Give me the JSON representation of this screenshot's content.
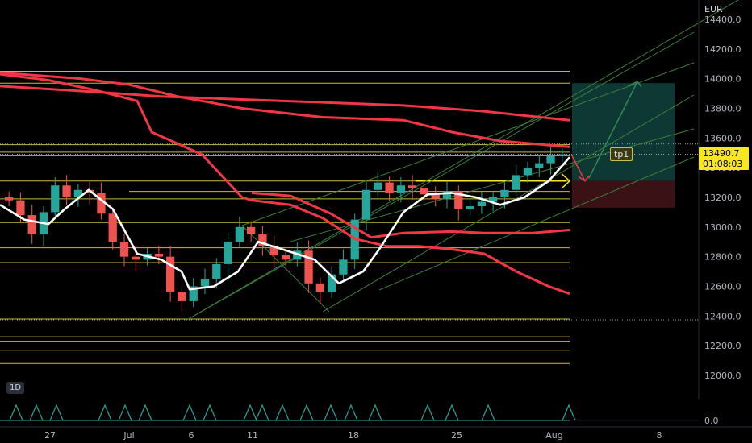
{
  "chart_data": {
    "type": "line",
    "title": "",
    "currency": "EUR",
    "interval": "1D",
    "price_axis": {
      "ticks": [
        "14400.0",
        "14200.0",
        "14000.0",
        "13800.0",
        "13600.0",
        "13400.0",
        "13200.0",
        "13000.0",
        "12800.0",
        "12600.0",
        "12400.0",
        "12200.0",
        "12000.0"
      ],
      "range": [
        11880,
        14480
      ]
    },
    "volume_axis": {
      "ticks": [
        "0.0"
      ]
    },
    "date_axis": {
      "ticks": [
        "27",
        "Jul",
        "6",
        "11",
        "18",
        "25",
        "Aug",
        "8"
      ]
    },
    "last_price": "13490.7",
    "countdown": "01:08:03",
    "last_price_value": 13490.7,
    "annotation_label": "tp1",
    "horizontal_levels": [
      14050,
      13970,
      13555,
      13505,
      13480,
      13310,
      13190,
      13030,
      12860,
      12760,
      12730,
      12380,
      12260,
      12230,
      12170,
      12080
    ],
    "target_zone": {
      "top": 13970,
      "entry": 13310,
      "stop": 13130
    },
    "series": [
      {
        "name": "",
        "color": "#f23645",
        "points": [
          [
            0,
            13950
          ],
          [
            60,
            13930
          ],
          [
            120,
            13910
          ],
          [
            200,
            13880
          ],
          [
            300,
            13860
          ],
          [
            400,
            13840
          ],
          [
            500,
            13820
          ],
          [
            600,
            13780
          ],
          [
            706,
            13720
          ]
        ]
      },
      {
        "name": "",
        "color": "#f23645",
        "points": [
          [
            0,
            14030
          ],
          [
            60,
            13990
          ],
          [
            120,
            13920
          ],
          [
            170,
            13850
          ],
          [
            188,
            13640
          ],
          [
            250,
            13490
          ],
          [
            300,
            13200
          ],
          [
            312,
            13180
          ],
          [
            360,
            13150
          ],
          [
            400,
            13060
          ],
          [
            440,
            12920
          ],
          [
            480,
            12870
          ],
          [
            520,
            12870
          ],
          [
            560,
            12850
          ],
          [
            600,
            12820
          ],
          [
            640,
            12700
          ],
          [
            680,
            12600
          ],
          [
            706,
            12550
          ]
        ]
      },
      {
        "name": "",
        "color": "#f23645",
        "points": [
          [
            0,
            14040
          ],
          [
            100,
            14000
          ],
          [
            160,
            13960
          ],
          [
            220,
            13880
          ],
          [
            300,
            13800
          ],
          [
            400,
            13740
          ],
          [
            500,
            13720
          ],
          [
            560,
            13640
          ],
          [
            620,
            13580
          ],
          [
            706,
            13540
          ]
        ]
      },
      {
        "name": "",
        "color": "#f23645",
        "points": [
          [
            312,
            13230
          ],
          [
            360,
            13210
          ],
          [
            410,
            13090
          ],
          [
            460,
            12930
          ],
          [
            500,
            12960
          ],
          [
            560,
            12970
          ],
          [
            600,
            12960
          ],
          [
            660,
            12960
          ],
          [
            706,
            12980
          ]
        ]
      },
      {
        "name": "",
        "color": "#ffffff",
        "points": [
          [
            0,
            13150
          ],
          [
            30,
            13050
          ],
          [
            60,
            13020
          ],
          [
            80,
            13120
          ],
          [
            110,
            13250
          ],
          [
            140,
            13120
          ],
          [
            170,
            12820
          ],
          [
            200,
            12780
          ],
          [
            225,
            12700
          ],
          [
            235,
            12580
          ],
          [
            265,
            12600
          ],
          [
            295,
            12700
          ],
          [
            320,
            12900
          ],
          [
            350,
            12850
          ],
          [
            390,
            12780
          ],
          [
            420,
            12620
          ],
          [
            450,
            12700
          ],
          [
            470,
            12850
          ],
          [
            500,
            13100
          ],
          [
            530,
            13220
          ],
          [
            560,
            13230
          ],
          [
            590,
            13200
          ],
          [
            620,
            13150
          ],
          [
            650,
            13200
          ],
          [
            680,
            13310
          ],
          [
            706,
            13470
          ]
        ]
      }
    ],
    "candles_close": [
      13180,
      13080,
      12950,
      13100,
      13280,
      13200,
      13250,
      13230,
      13090,
      12900,
      12800,
      12780,
      12820,
      12800,
      12560,
      12500,
      12600,
      12650,
      12750,
      12900,
      13000,
      12950,
      12870,
      12810,
      12780,
      12840,
      12620,
      12560,
      12680,
      12780,
      13050,
      13250,
      13300,
      13230,
      13280,
      13260,
      13220,
      13190,
      13240,
      13120,
      13140,
      13170,
      13200,
      13250,
      13350,
      13400,
      13430,
      13480,
      13490.7
    ],
    "volume_pulses_x": [
      20,
      45,
      70,
      130,
      155,
      180,
      235,
      260,
      310,
      325,
      350,
      380,
      410,
      435,
      465,
      530,
      560,
      605,
      705
    ]
  }
}
